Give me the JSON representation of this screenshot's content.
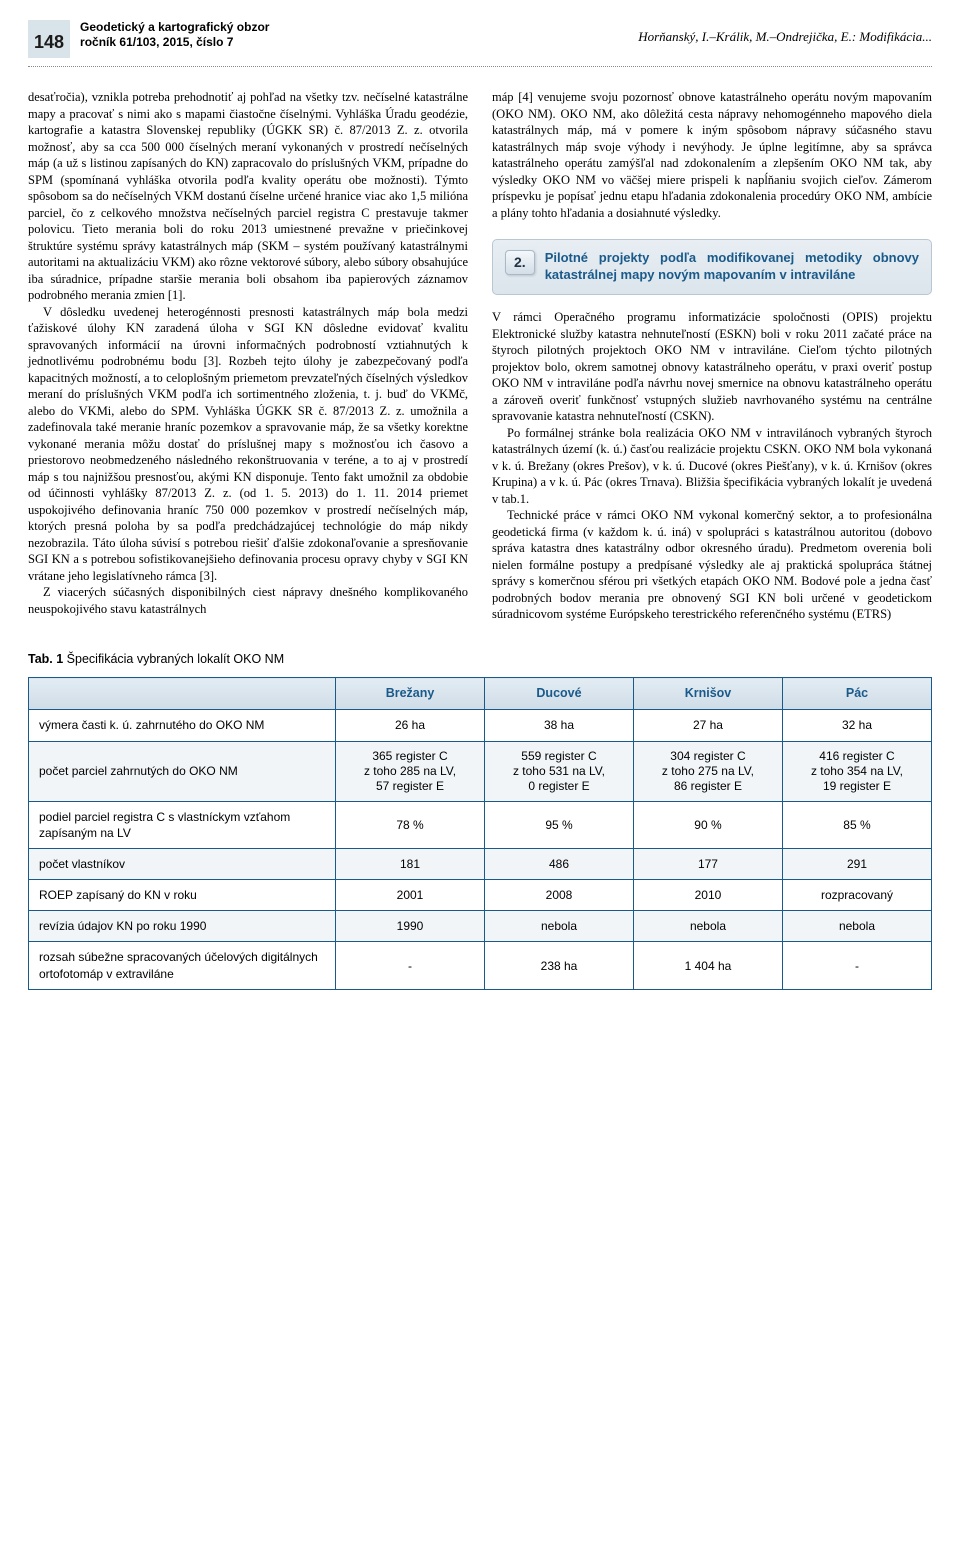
{
  "header": {
    "page_number": "148",
    "journal_line1": "Geodetický a kartografický obzor",
    "journal_line2": "ročník 61/103, 2015, číslo 7",
    "authors": "Horňanský, I.–Králik, M.–Ondrejička, E.: Modifikácia..."
  },
  "body": {
    "col1_p1": "desaťročia), vznikla potreba prehodnotiť aj pohľad na všetky tzv. nečíselné katastrálne mapy a pracovať s nimi ako s mapami čiastočne číselnými. Vyhláška Úradu geodézie, kartografie a katastra Slovenskej republiky (ÚGKK SR) č. 87/2013 Z. z. otvorila možnosť, aby sa cca 500 000 číselných meraní vykonaných v prostredí nečíselných máp (a už s listinou zapísaných do KN) zapracovalo do príslušných VKM, prípadne do SPM (spomínaná vyhláška otvorila podľa kvality operátu obe možnosti). Týmto spôsobom sa do nečíselných VKM dostanú číselne určené hranice viac ako 1,5 milióna parciel, čo z celkového množstva nečíselných parciel registra C prestavuje takmer polovicu. Tieto merania boli do roku 2013 umiestnené prevažne v priečinkovej štruktúre systému správy katastrálnych máp (SKM – systém používaný katastrálnymi autoritami na aktualizáciu VKM) ako rôzne vektorové súbory, alebo súbory obsahujúce iba súradnice, prípadne staršie merania boli obsahom iba papierových záznamov podrobného merania zmien [1].",
    "col1_p2": "V dôsledku uvedenej heterogénnosti presnosti katastrálnych máp bola medzi ťažiskové úlohy KN zaradená úloha v SGI KN dôsledne evidovať kvalitu spravovaných informácií na úrovni informačných podrobností vztiahnutých k jednotlivému podrobnému bodu [3]. Rozbeh tejto úlohy je zabezpečovaný podľa kapacitných možností, a to celoplošným priemetom prevzateľných číselných výsledkov meraní do príslušných VKM podľa ich sortimentného zloženia, t. j. buď do VKMč, alebo do VKMi, alebo do SPM. Vyhláška ÚGKK SR č. 87/2013 Z. z. umožnila a zadefinovala také meranie hraníc pozemkov a spravovanie máp, že sa všetky korektne vykonané merania môžu dostať do príslušnej mapy s možnosťou ich časovo a priestorovo neobmedzeného následného rekonštruovania v teréne, a to aj v prostredí máp s tou najnižšou presnosťou, akými KN disponuje. Tento fakt umožnil za obdobie od účinnosti vyhlášky 87/2013 Z. z. (od 1. 5. 2013) do 1. 11. 2014 priemet uspokojivého definovania hraníc 750 000 pozemkov v prostredí nečíselných máp, ktorých presná poloha by sa podľa predchádzajúcej technológie do máp nikdy nezobrazila. Táto úloha súvisí s potrebou riešiť ďalšie zdokonaľovanie a spresňovanie SGI KN a s potrebou sofistikovanejšieho definovania procesu opravy chyby v SGI KN vrátane jeho legislatívneho rámca [3].",
    "col1_p3": "Z viacerých súčasných disponibilných ciest nápravy dnešného komplikovaného neuspokojivého stavu katastrálnych",
    "col2_p1": "máp [4] venujeme svoju pozornosť obnove katastrálneho operátu novým mapovaním (OKO NM). OKO NM, ako dôležitá cesta nápravy nehomogénneho mapového diela katastrálnych máp, má v pomere k iným spôsobom nápravy súčasného stavu katastrálnych máp svoje výhody i nevýhody. Je úplne legitímne, aby sa správca katastrálneho operátu zamýšľal nad zdokonalením a zlepšením OKO NM tak, aby výsledky OKO NM vo väčšej miere prispeli k napĺňaniu svojich cieľov. Zámerom príspevku je popísať jednu etapu hľadania zdokonalenia procedúry OKO NM, ambície a plány tohto hľadania a dosiahnuté výsledky.",
    "section2_num": "2.",
    "section2_title": "Pilotné projekty podľa modifikovanej metodiky obnovy katastrálnej mapy novým mapovaním v intraviláne",
    "col2_p2": "V rámci Operačného programu informatizácie spoločnosti (OPIS) projektu Elektronické služby katastra nehnuteľností (ESKN) boli v roku 2011 začaté práce na štyroch pilotných projektoch OKO NM v intraviláne. Cieľom týchto pilotných projektov bolo, okrem samotnej obnovy katastrálneho operátu, v praxi overiť postup OKO NM v intraviláne podľa návrhu novej smernice na obnovu katastrálneho operátu a zároveň overiť funkčnosť vstupných služieb navrhovaného systému na centrálne spravovanie katastra nehnuteľností (CSKN).",
    "col2_p3": "Po formálnej stránke bola realizácia OKO NM v intravilánoch vybraných štyroch katastrálnych území (k. ú.) časťou realizácie projektu CSKN. OKO NM bola vykonaná v k. ú. Brežany (okres Prešov), v k. ú. Ducové (okres Piešťany), v k. ú. Krnišov (okres Krupina) a v k. ú. Pác (okres Trnava). Bližšia špecifikácia vybraných lokalít je uvedená v tab.1.",
    "col2_p4": "Technické práce v rámci OKO NM vykonal komerčný sektor, a to profesionálna geodetická firma (v každom k. ú. iná) v spolupráci s katastrálnou autoritou (dobovo správa katastra dnes katastrálny odbor okresného úradu). Predmetom overenia boli nielen formálne postupy a predpísané výsledky ale aj praktická spolupráca štátnej správy s komerčnou sférou pri všetkých etapách OKO NM. Bodové pole a jedna časť podrobných bodov merania pre obnovený SGI KN boli určené v geodetickom súradnicovom systéme Európskeho terestrického referenčného systému (ETRS)"
  },
  "table": {
    "caption_bold": "Tab. 1",
    "caption_rest": " Špecifikácia vybraných lokalít OKO NM",
    "columns": [
      "",
      "Brežany",
      "Ducové",
      "Krnišov",
      "Pác"
    ],
    "rows": [
      {
        "label": "výmera časti k. ú. zahrnutého do OKO NM",
        "cells": [
          "26 ha",
          "38 ha",
          "27 ha",
          "32 ha"
        ]
      },
      {
        "label": "počet parciel zahrnutých do OKO NM",
        "cells": [
          "365 register C\nz toho 285 na LV,\n57 register E",
          "559 register C\nz toho 531 na LV,\n0 register E",
          "304 register C\nz toho 275 na LV,\n86 register E",
          "416 register C\nz toho 354 na LV,\n19 register E"
        ]
      },
      {
        "label": "podiel parciel registra C s vlastníckym vzťahom zapísaným na LV",
        "cells": [
          "78 %",
          "95 %",
          "90 %",
          "85 %"
        ]
      },
      {
        "label": "počet vlastníkov",
        "cells": [
          "181",
          "486",
          "177",
          "291"
        ]
      },
      {
        "label": "ROEP zapísaný do KN v roku",
        "cells": [
          "2001",
          "2008",
          "2010",
          "rozpracovaný"
        ]
      },
      {
        "label": "revízia údajov KN po roku 1990",
        "cells": [
          "1990",
          "nebola",
          "nebola",
          "nebola"
        ]
      },
      {
        "label": "rozsah súbežne spracovaných účelových digitálnych ortofotomáp v extraviláne",
        "cells": [
          "-",
          "238 ha",
          "1 404 ha",
          "-"
        ]
      }
    ]
  },
  "colors": {
    "header_box_bg": "#d9e3ea",
    "section_title": "#1a5a8a",
    "table_border": "#1a5a8a",
    "table_header_bg_top": "#e3ecf3",
    "table_header_bg_bot": "#cfdce7",
    "row_alt_bg": "#f1f5f8"
  }
}
